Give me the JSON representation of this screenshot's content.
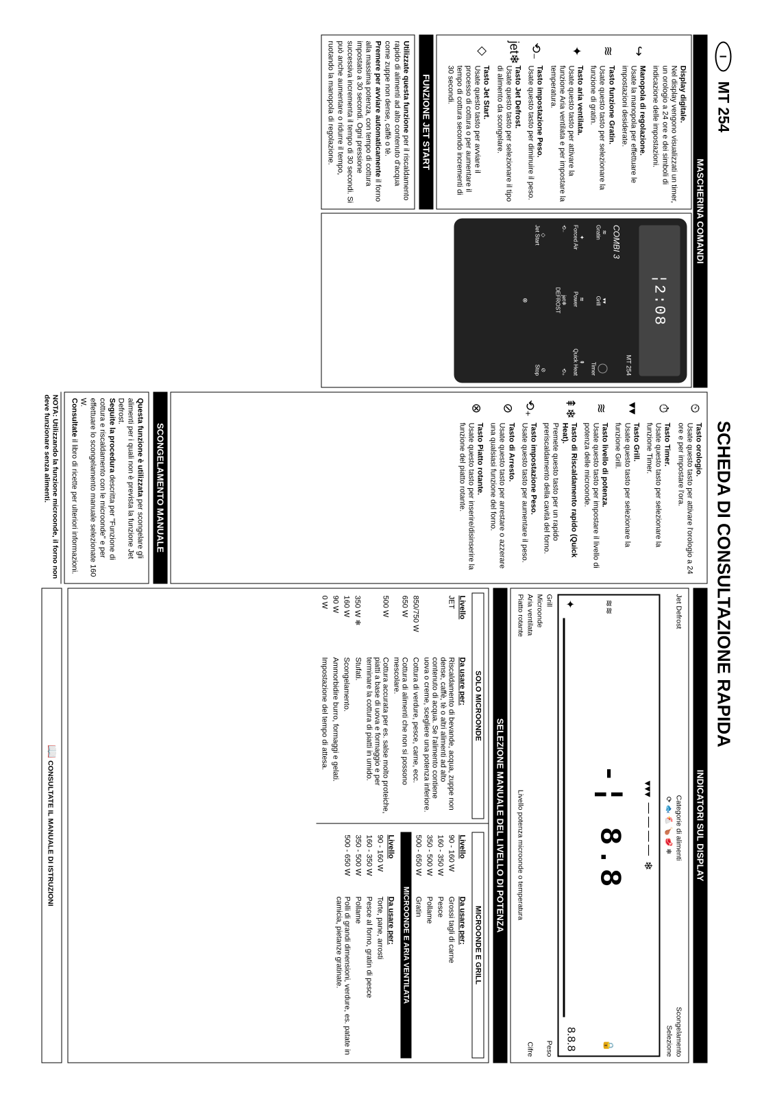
{
  "header": {
    "country_oval": "I",
    "model": "MT 254",
    "title": "SCHEDA DI CONSULTAZIONE RAPIDA"
  },
  "mascherina": {
    "header": "MASCHERINA COMANDI"
  },
  "leftItems": [
    {
      "title": "Display digitale.",
      "body": "Nel display vengono visualizzati un timer, un orologio a 24 ore e dei simboli di indicazione delle impostazioni."
    },
    {
      "icon": "↪",
      "title": "Manopola di regolazione.",
      "body": "Usate la manopola per effettuare le impostazioni desiderate."
    },
    {
      "icon": "≋",
      "title": "Tasto funzione Gratin.",
      "body": "Usate questo tasto per selezionare la funzione di gratin."
    },
    {
      "icon": "✦",
      "title": "Tasto aria ventilata.",
      "body": "Usate questo tasto per attivare la funzione Aria ventilata e per impostare la temperatura."
    },
    {
      "icon": "⟲₋",
      "title": "Tasto impostazione Peso.",
      "body": "Usate questo tasto per diminuire il peso."
    },
    {
      "icon": "jet❄",
      "title": "Tasto Jet Defrost.",
      "body": "Usate questo tasto per selezionare il tipo di alimento da scongelare."
    },
    {
      "icon": "◇",
      "title": "Tasto Jet Start.",
      "body": "Usate questo tasto per avviare il processo di cottura o per aumentare il tempo di cottura secondo incrementi di 30 secondi."
    }
  ],
  "midItems": [
    {
      "icon": "⏲",
      "title": "Tasto orologio.",
      "body": "Usate questo tasto per attivare l'orologio a 24 ore e per impostare l'ora."
    },
    {
      "icon": "⏱",
      "title": "Tasto Timer.",
      "body": "Usate questo tasto per selezionare la funzione Timer."
    },
    {
      "icon": "▾▾",
      "title": "Tasto Grill.",
      "body": "Usate questo tasto per selezionare la funzione Grill."
    },
    {
      "icon": "≋",
      "title": "Tasto livello di potenza.",
      "body": "Usate questo tasto per impostare il livello di potenza delle microonde."
    },
    {
      "icon": "⇞❄",
      "title": "Tasto di Riscaldamento rapido (Quick Heat).",
      "body": "Premete questo tasto per un rapido preriscaldamento della cavità del forno."
    },
    {
      "icon": "⟲₊",
      "title": "Tasto impostazione Peso.",
      "body": "Usate questo tasto per aumentare il peso."
    },
    {
      "icon": "⊘",
      "title": "Tasto di Arresto.",
      "body": "Usate questo tasto per arrestare o azzerare una qualsiasi funzione del forno."
    },
    {
      "icon": "⊗",
      "title": "Tasto Piatto rotante.",
      "body": "Usate questo tasto per inserire/disinserire la funzione del piatto rotante."
    }
  ],
  "jetStart": {
    "header": "FUNZIONE JET START",
    "body": "Utilizzate questa funzione per il riscaldamento rapido di alimenti ad alto contenuto d'acqua come  zuppe non dense, caffè o tè.\nPremere per avviare automaticamente il forno alla massima potenza, con tempo di cottura impostato a 30 secondi. Ogni pressione successiva incrementa il tempo di 30 secondi. Si può anche aumentare o ridurre il tempo, ruotando la manopola di regolazione."
  },
  "scong": {
    "header": "SCONGELAMENTO MANUALE",
    "body": "Questa funzione è utilizzata per scongelare gli alimenti per i quali non è prevista la funzione Jet Defrost.\nSeguite la procedura  descritta per \"Funzione di cottura e riscaldamento con le microonde\" e per effettuare lo scongelamento manuale selezionate 160 W.\nConsultate il libro di ricette per ulteriori informazioni."
  },
  "note": "NOTA: Utilizzando la funzione microonde, il forno non deve funzionare senza alimenti.",
  "indicatori": {
    "header": "INDICATORI SUL DISPLAY",
    "labels": {
      "jetdefrost": "Jet Defrost",
      "categorie": "Categorie di alimenti",
      "scong": "Scongelamento",
      "selezione": "Selezione",
      "grill": "Grill",
      "peso": "Peso",
      "microonde": "Microonde",
      "aria": "Aria ventilata",
      "cifre": "Cifre",
      "piatto": "Piatto rotante",
      "livello": "Livello potenza microonde o temperatura"
    },
    "lcd_digits": "-¦ 8.8"
  },
  "selezione": {
    "header": "SELEZIONE MANUALE DEL LIVELLO DI POTENZA",
    "solo": {
      "hdr": "SOLO MICROONDE",
      "col1": "Livello",
      "col2": "Da usare per:",
      "rows": [
        {
          "lvl": "JET",
          "use": "Riscaldamento di bevande, acqua, zuppe non dense, caffè, tè o altri alimenti ad alto contenuto di acqua. Se l'alimento contiene uova o creme, scegliere una potenza inferiore."
        },
        {
          "lvl": "850/750 W",
          "use": "Cottura di verdure, pesce, carne, ecc."
        },
        {
          "lvl": "650 W",
          "use": "Cottura di alimenti che non si possono mescolare."
        },
        {
          "lvl": "500 W",
          "use": "Cottura accurata per es. salse molto proteiche, piatti a base di uova e formaggio e per terminare la cottura di piatti in umido."
        },
        {
          "lvl": "350 W",
          "use": "Stufati.",
          "icon": "❄"
        },
        {
          "lvl": "160 W",
          "use": "Scongelamento."
        },
        {
          "lvl": "90 W",
          "use": "Ammorbidire burro, formaggi e gelati."
        },
        {
          "lvl": "0 W",
          "use": "Impostazione del tempo di attesa."
        }
      ]
    },
    "mgrill": {
      "hdr": "MICROONDE E GRILL",
      "col1": "Livello",
      "col2": "Da usare per:",
      "rows": [
        {
          "lvl": "90 - 160 W",
          "use": "Grossi tagli di carne"
        },
        {
          "lvl": "160 - 350 W",
          "use": "Pesce"
        },
        {
          "lvl": "350 - 500 W",
          "use": "Pollame"
        },
        {
          "lvl": "500 - 650 W",
          "use": "Gratin"
        }
      ]
    },
    "maria": {
      "hdr": "MICROONDE E ARIA VENTILATA",
      "col1": "Livello",
      "col2": "Da usare per:",
      "rows": [
        {
          "lvl": "90 - 160 W",
          "use": "Torte, pane, arrosti"
        },
        {
          "lvl": "160 - 350 W",
          "use": "Pesce al forno, gratin di pesce"
        },
        {
          "lvl": "350 - 500 W",
          "use": "Pollame"
        },
        {
          "lvl": "500 - 650 W",
          "use": "Polli di grandi dimensioni, verdure, es. patate in camicia, pietanze gratinate."
        }
      ]
    }
  },
  "consult": "CONSULTATE IL MANUALE DI ISTRUZIONI",
  "panel": {
    "model": "MT 254",
    "combi": "COMBI 3",
    "lcd": "¦2:08",
    "gratin": "Gratin",
    "grill": "Grill",
    "timer": "Timer",
    "power": "Power",
    "forced": "Forced Air",
    "quick": "Quick Heat",
    "jet": "jet",
    "defrost": "DEFROST",
    "jetstart": "Jet Start",
    "stop": "Stop"
  }
}
